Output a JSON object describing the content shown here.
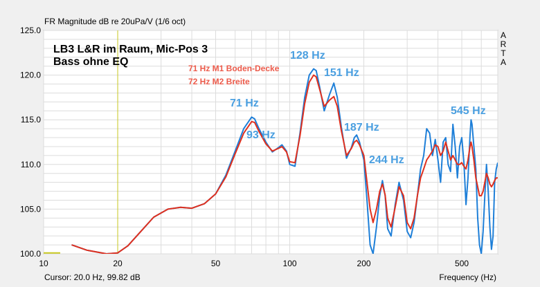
{
  "header": {
    "title": "FR Magnitude dB re 20uPa/V (1/6 oct)",
    "arta_letters": [
      "A",
      "R",
      "T",
      "A"
    ]
  },
  "footer": {
    "cursor": "Cursor: 20.0 Hz, 99.82 dB",
    "xlabel": "Frequency (Hz)"
  },
  "annotations": {
    "main_title_line1": "LB3 L&R im Raum, Mic-Pos 3",
    "main_title_line2": "Bass ohne EQ",
    "legend_m1": "71 Hz M1 Boden-Decke",
    "legend_m2": "72 Hz M2 Breite",
    "peaks": [
      {
        "label": "128 Hz",
        "f": 128
      },
      {
        "label": "151 Hz",
        "f": 151
      },
      {
        "label": "71 Hz",
        "f": 71
      },
      {
        "label": "93 Hz",
        "f": 93
      },
      {
        "label": "187 Hz",
        "f": 187
      },
      {
        "label": "244 Hz",
        "f": 244
      },
      {
        "label": "545 Hz",
        "f": 545
      }
    ]
  },
  "colors": {
    "background": "#ffffff",
    "grid": "#dcdcdc",
    "series1": "#1e7fd8",
    "series2": "#e0301e",
    "peak_label": "#4a9fe0",
    "legend_text": "#ec5a4a",
    "cursor_line": "#c8c820"
  },
  "chart_data": {
    "type": "line",
    "xscale": "log",
    "xlim": [
      10,
      700
    ],
    "ylim": [
      100,
      125
    ],
    "xticks": [
      {
        "v": 10,
        "label": "10"
      },
      {
        "v": 20,
        "label": "20"
      },
      {
        "v": 50,
        "label": "50"
      },
      {
        "v": 100,
        "label": "100"
      },
      {
        "v": 200,
        "label": "200"
      },
      {
        "v": 500,
        "label": "500"
      }
    ],
    "yticks": [
      {
        "v": 100,
        "label": "100.0"
      },
      {
        "v": 105,
        "label": "105.0"
      },
      {
        "v": 110,
        "label": "110.0"
      },
      {
        "v": 115,
        "label": "115.0"
      },
      {
        "v": 120,
        "label": "120.0"
      },
      {
        "v": 125,
        "label": "125.0"
      }
    ],
    "grid": true,
    "cursor_x": 20,
    "series": [
      {
        "color": "#1e7fd8",
        "x": [
          13,
          15,
          18,
          20,
          22,
          25,
          28,
          32,
          36,
          40,
          45,
          50,
          55,
          60,
          65,
          70,
          72,
          75,
          80,
          85,
          90,
          93,
          97,
          100,
          105,
          110,
          115,
          120,
          125,
          128,
          132,
          138,
          145,
          151,
          156,
          162,
          170,
          178,
          183,
          187,
          192,
          200,
          206,
          212,
          218,
          225,
          232,
          238,
          244,
          250,
          258,
          268,
          278,
          290,
          300,
          310,
          320,
          330,
          340,
          350,
          360,
          370,
          380,
          390,
          400,
          410,
          420,
          430,
          440,
          450,
          460,
          470,
          480,
          490,
          500,
          510,
          520,
          530,
          540,
          545,
          550,
          560,
          570,
          580,
          590,
          600,
          610,
          620,
          630,
          640,
          650,
          660,
          670,
          680,
          690,
          700
        ],
        "y": [
          101.0,
          100.4,
          100.0,
          100.1,
          100.9,
          102.6,
          104.1,
          105.0,
          105.2,
          105.1,
          105.6,
          106.7,
          108.8,
          111.5,
          114.0,
          115.3,
          115.1,
          114.0,
          112.5,
          111.4,
          111.9,
          112.2,
          111.5,
          110.0,
          109.8,
          113.5,
          117.5,
          120.0,
          120.7,
          120.5,
          118.8,
          116.0,
          117.8,
          119.1,
          117.5,
          114.2,
          110.7,
          111.9,
          113.0,
          113.3,
          112.5,
          110.5,
          106.0,
          101.0,
          100.0,
          103.0,
          106.5,
          108.2,
          106.5,
          102.8,
          102.0,
          105.5,
          108.0,
          106.0,
          102.5,
          101.8,
          103.5,
          106.5,
          109.5,
          111.0,
          114.0,
          113.5,
          111.0,
          112.8,
          110.5,
          108.0,
          112.5,
          113.0,
          110.0,
          109.2,
          114.5,
          112.0,
          108.5,
          112.0,
          113.0,
          110.2,
          105.5,
          108.5,
          113.2,
          115.0,
          114.5,
          112.0,
          109.5,
          104.0,
          101.0,
          100.0,
          102.5,
          106.5,
          110.0,
          107.0,
          103.0,
          100.5,
          102.0,
          108.0,
          109.5,
          110.2
        ]
      },
      {
        "color": "#e0301e",
        "x": [
          13,
          15,
          18,
          20,
          22,
          25,
          28,
          32,
          36,
          40,
          45,
          50,
          55,
          60,
          65,
          70,
          72,
          75,
          80,
          85,
          90,
          93,
          97,
          100,
          105,
          110,
          115,
          120,
          125,
          128,
          132,
          138,
          145,
          151,
          156,
          162,
          170,
          178,
          183,
          187,
          192,
          200,
          206,
          212,
          218,
          225,
          232,
          238,
          244,
          250,
          258,
          268,
          278,
          290,
          300,
          310,
          320,
          330,
          340,
          350,
          360,
          370,
          380,
          390,
          400,
          410,
          420,
          430,
          440,
          450,
          460,
          470,
          480,
          490,
          500,
          510,
          520,
          530,
          540,
          545,
          550,
          560,
          570,
          580,
          590,
          600,
          610,
          620,
          630,
          640,
          650,
          660,
          670,
          680,
          690,
          700
        ],
        "y": [
          101.0,
          100.4,
          100.0,
          100.1,
          100.9,
          102.6,
          104.1,
          105.0,
          105.2,
          105.1,
          105.6,
          106.7,
          108.6,
          111.2,
          113.5,
          114.8,
          114.7,
          113.7,
          112.3,
          111.5,
          111.8,
          112.0,
          111.4,
          110.3,
          110.2,
          113.2,
          116.8,
          119.2,
          120.0,
          119.8,
          118.5,
          116.5,
          117.2,
          117.6,
          116.5,
          113.8,
          111.0,
          111.8,
          112.5,
          112.7,
          112.2,
          111.0,
          108.0,
          105.0,
          103.5,
          105.0,
          107.0,
          107.8,
          106.6,
          104.0,
          103.0,
          105.2,
          107.5,
          106.5,
          103.5,
          102.8,
          104.0,
          106.5,
          108.5,
          109.5,
          110.5,
          111.0,
          111.5,
          112.2,
          112.0,
          111.0,
          111.5,
          112.5,
          111.5,
          110.5,
          111.0,
          110.5,
          110.0,
          110.0,
          110.2,
          109.8,
          109.5,
          110.5,
          112.0,
          112.5,
          112.0,
          110.5,
          108.5,
          107.5,
          106.5,
          106.5,
          107.0,
          108.0,
          109.0,
          108.5,
          107.8,
          107.5,
          107.8,
          108.2,
          108.5,
          108.5
        ]
      }
    ]
  }
}
